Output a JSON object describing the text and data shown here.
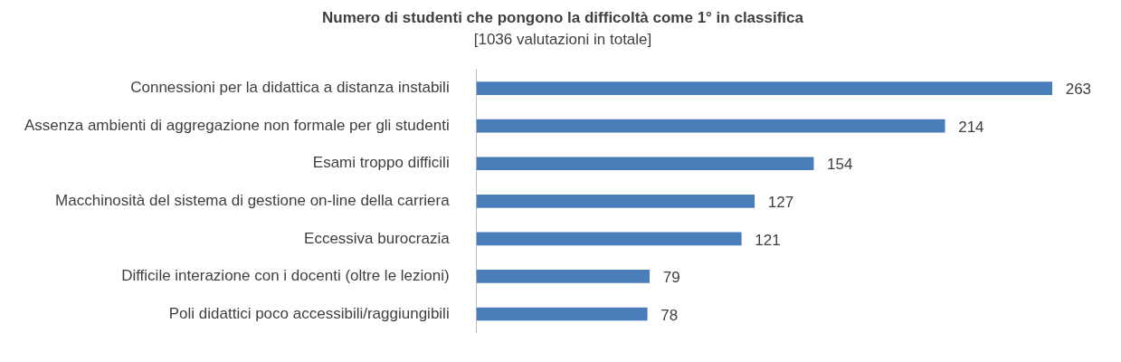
{
  "chart_data": {
    "type": "bar",
    "orientation": "horizontal",
    "title": "Numero di studenti che pongono la difficoltà come 1° in classifica",
    "subtitle": "[1036 valutazioni in totale]",
    "categories": [
      "Connessioni per la didattica a distanza instabili",
      "Assenza ambienti di aggregazione non formale per gli studenti",
      "Esami troppo difficili",
      "Macchinosità del sistema di gestione on-line della carriera",
      "Eccessiva burocrazia",
      "Difficile interazione con i docenti (oltre le lezioni)",
      "Poli didattici poco accessibili/raggiungibili"
    ],
    "values": [
      263,
      214,
      154,
      127,
      121,
      79,
      78
    ],
    "color": "#4a7ebb",
    "data_labels": true
  }
}
